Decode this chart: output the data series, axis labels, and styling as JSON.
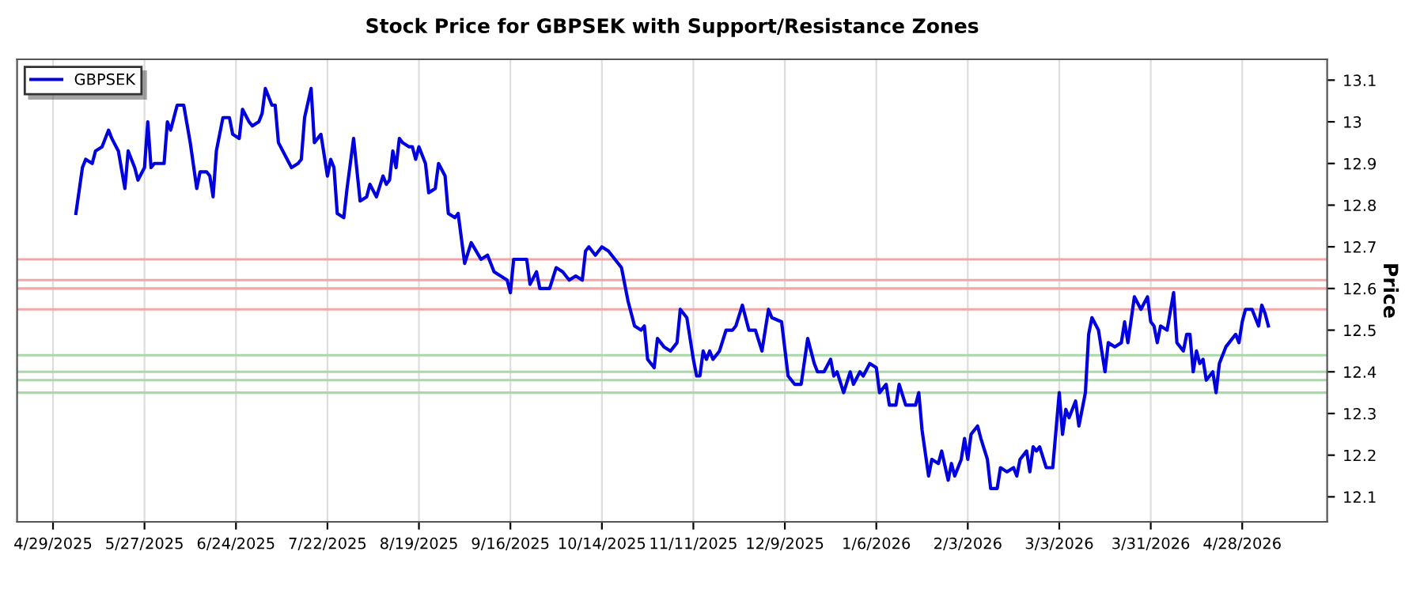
{
  "chart_data": {
    "type": "line",
    "title": "Stock Price for GBPSEK with Support/Resistance Zones",
    "ylabel": "Price",
    "series": [
      {
        "name": "GBPSEK",
        "color": "#0000e0",
        "x": [
          "2025-05-06",
          "2025-05-08",
          "2025-05-09",
          "2025-05-11",
          "2025-05-12",
          "2025-05-14",
          "2025-05-16",
          "2025-05-17",
          "2025-05-19",
          "2025-05-21",
          "2025-05-22",
          "2025-05-24",
          "2025-05-25",
          "2025-05-27",
          "2025-05-28",
          "2025-05-29",
          "2025-05-30",
          "2025-06-02",
          "2025-06-03",
          "2025-06-04",
          "2025-06-06",
          "2025-06-08",
          "2025-06-10",
          "2025-06-12",
          "2025-06-13",
          "2025-06-15",
          "2025-06-16",
          "2025-06-17",
          "2025-06-18",
          "2025-06-20",
          "2025-06-22",
          "2025-06-23",
          "2025-06-25",
          "2025-06-26",
          "2025-06-28",
          "2025-06-29",
          "2025-07-01",
          "2025-07-02",
          "2025-07-03",
          "2025-07-05",
          "2025-07-06",
          "2025-07-07",
          "2025-07-09",
          "2025-07-11",
          "2025-07-13",
          "2025-07-14",
          "2025-07-15",
          "2025-07-17",
          "2025-07-18",
          "2025-07-20",
          "2025-07-22",
          "2025-07-23",
          "2025-07-24",
          "2025-07-25",
          "2025-07-27",
          "2025-07-28",
          "2025-07-30",
          "2025-08-01",
          "2025-08-03",
          "2025-08-04",
          "2025-08-06",
          "2025-08-08",
          "2025-08-09",
          "2025-08-10",
          "2025-08-11",
          "2025-08-12",
          "2025-08-13",
          "2025-08-14",
          "2025-08-16",
          "2025-08-17",
          "2025-08-18",
          "2025-08-19",
          "2025-08-21",
          "2025-08-22",
          "2025-08-24",
          "2025-08-25",
          "2025-08-27",
          "2025-08-28",
          "2025-08-30",
          "2025-08-31",
          "2025-09-02",
          "2025-09-04",
          "2025-09-07",
          "2025-09-09",
          "2025-09-11",
          "2025-09-13",
          "2025-09-15",
          "2025-09-16",
          "2025-09-17",
          "2025-09-19",
          "2025-09-21",
          "2025-09-22",
          "2025-09-24",
          "2025-09-25",
          "2025-09-28",
          "2025-09-30",
          "2025-10-02",
          "2025-10-04",
          "2025-10-06",
          "2025-10-08",
          "2025-10-09",
          "2025-10-10",
          "2025-10-12",
          "2025-10-14",
          "2025-10-16",
          "2025-10-18",
          "2025-10-20",
          "2025-10-22",
          "2025-10-24",
          "2025-10-26",
          "2025-10-27",
          "2025-10-28",
          "2025-10-30",
          "2025-10-31",
          "2025-11-02",
          "2025-11-04",
          "2025-11-06",
          "2025-11-07",
          "2025-11-09",
          "2025-11-11",
          "2025-11-12",
          "2025-11-13",
          "2025-11-14",
          "2025-11-15",
          "2025-11-16",
          "2025-11-17",
          "2025-11-19",
          "2025-11-21",
          "2025-11-23",
          "2025-11-24",
          "2025-11-26",
          "2025-11-28",
          "2025-11-30",
          "2025-12-02",
          "2025-12-04",
          "2025-12-05",
          "2025-12-08",
          "2025-12-10",
          "2025-12-12",
          "2025-12-14",
          "2025-12-16",
          "2025-12-18",
          "2025-12-19",
          "2025-12-21",
          "2025-12-23",
          "2025-12-24",
          "2025-12-25",
          "2025-12-27",
          "2025-12-29",
          "2025-12-30",
          "2026-01-01",
          "2026-01-02",
          "2026-01-04",
          "2026-01-06",
          "2026-01-07",
          "2026-01-09",
          "2026-01-10",
          "2026-01-12",
          "2026-01-13",
          "2026-01-15",
          "2026-01-18",
          "2026-01-19",
          "2026-01-20",
          "2026-01-22",
          "2026-01-23",
          "2026-01-25",
          "2026-01-26",
          "2026-01-28",
          "2026-01-29",
          "2026-01-30",
          "2026-02-01",
          "2026-02-02",
          "2026-02-03",
          "2026-02-04",
          "2026-02-06",
          "2026-02-07",
          "2026-02-09",
          "2026-02-10",
          "2026-02-12",
          "2026-02-13",
          "2026-02-15",
          "2026-02-17",
          "2026-02-18",
          "2026-02-19",
          "2026-02-21",
          "2026-02-22",
          "2026-02-23",
          "2026-02-24",
          "2026-02-25",
          "2026-02-27",
          "2026-03-01",
          "2026-03-03",
          "2026-03-04",
          "2026-03-05",
          "2026-03-06",
          "2026-03-08",
          "2026-03-09",
          "2026-03-11",
          "2026-03-12",
          "2026-03-13",
          "2026-03-15",
          "2026-03-17",
          "2026-03-18",
          "2026-03-20",
          "2026-03-22",
          "2026-03-23",
          "2026-03-24",
          "2026-03-26",
          "2026-03-28",
          "2026-03-30",
          "2026-03-31",
          "2026-04-01",
          "2026-04-02",
          "2026-04-03",
          "2026-04-05",
          "2026-04-07",
          "2026-04-08",
          "2026-04-10",
          "2026-04-11",
          "2026-04-12",
          "2026-04-13",
          "2026-04-14",
          "2026-04-15",
          "2026-04-16",
          "2026-04-17",
          "2026-04-19",
          "2026-04-20",
          "2026-04-21",
          "2026-04-23",
          "2026-04-24",
          "2026-04-26",
          "2026-04-27",
          "2026-04-28",
          "2026-04-29",
          "2026-05-01",
          "2026-05-03",
          "2026-05-04",
          "2026-05-05",
          "2026-05-06"
        ],
        "values": [
          12.78,
          12.89,
          12.91,
          12.9,
          12.93,
          12.94,
          12.98,
          12.96,
          12.93,
          12.84,
          12.93,
          12.89,
          12.86,
          12.89,
          13.0,
          12.89,
          12.9,
          12.9,
          13.0,
          12.98,
          13.04,
          13.04,
          12.95,
          12.84,
          12.88,
          12.88,
          12.87,
          12.82,
          12.93,
          13.01,
          13.01,
          12.97,
          12.96,
          13.03,
          13.0,
          12.99,
          13.0,
          13.02,
          13.08,
          13.04,
          13.04,
          12.95,
          12.92,
          12.89,
          12.9,
          12.91,
          13.01,
          13.08,
          12.95,
          12.97,
          12.87,
          12.91,
          12.89,
          12.78,
          12.77,
          12.84,
          12.96,
          12.81,
          12.82,
          12.85,
          12.82,
          12.87,
          12.85,
          12.86,
          12.93,
          12.89,
          12.96,
          12.95,
          12.94,
          12.94,
          12.91,
          12.94,
          12.9,
          12.83,
          12.84,
          12.9,
          12.87,
          12.78,
          12.77,
          12.78,
          12.66,
          12.71,
          12.67,
          12.68,
          12.64,
          12.63,
          12.62,
          12.59,
          12.67,
          12.67,
          12.67,
          12.61,
          12.64,
          12.6,
          12.6,
          12.65,
          12.64,
          12.62,
          12.63,
          12.62,
          12.69,
          12.7,
          12.68,
          12.7,
          12.69,
          12.67,
          12.65,
          12.57,
          12.51,
          12.5,
          12.51,
          12.43,
          12.41,
          12.48,
          12.46,
          12.45,
          12.47,
          12.55,
          12.53,
          12.43,
          12.39,
          12.39,
          12.45,
          12.43,
          12.45,
          12.43,
          12.45,
          12.5,
          12.5,
          12.51,
          12.56,
          12.5,
          12.5,
          12.45,
          12.55,
          12.53,
          12.52,
          12.39,
          12.37,
          12.37,
          12.48,
          12.42,
          12.4,
          12.4,
          12.43,
          12.39,
          12.4,
          12.35,
          12.4,
          12.37,
          12.4,
          12.39,
          12.42,
          12.41,
          12.35,
          12.37,
          12.32,
          12.32,
          12.37,
          12.32,
          12.32,
          12.35,
          12.26,
          12.15,
          12.19,
          12.18,
          12.21,
          12.14,
          12.18,
          12.15,
          12.19,
          12.24,
          12.19,
          12.25,
          12.27,
          12.24,
          12.19,
          12.12,
          12.12,
          12.17,
          12.16,
          12.17,
          12.15,
          12.19,
          12.21,
          12.16,
          12.22,
          12.21,
          12.22,
          12.17,
          12.17,
          12.35,
          12.25,
          12.31,
          12.29,
          12.33,
          12.27,
          12.35,
          12.49,
          12.53,
          12.5,
          12.4,
          12.47,
          12.46,
          12.47,
          12.52,
          12.47,
          12.58,
          12.55,
          12.58,
          12.52,
          12.51,
          12.47,
          12.51,
          12.5,
          12.59,
          12.47,
          12.45,
          12.49,
          12.49,
          12.4,
          12.45,
          12.42,
          12.43,
          12.38,
          12.4,
          12.35,
          12.42,
          12.46,
          12.47,
          12.49,
          12.47,
          12.52,
          12.55,
          12.55,
          12.51,
          12.56,
          12.54,
          12.51
        ]
      }
    ],
    "ref_lines": [
      {
        "axis": "y",
        "value": 12.67,
        "color": "#f4a6a6"
      },
      {
        "axis": "y",
        "value": 12.62,
        "color": "#f4a6a6"
      },
      {
        "axis": "y",
        "value": 12.6,
        "color": "#f4a6a6"
      },
      {
        "axis": "y",
        "value": 12.55,
        "color": "#f4a6a6"
      },
      {
        "axis": "y",
        "value": 12.44,
        "color": "#a9d8a9"
      },
      {
        "axis": "y",
        "value": 12.4,
        "color": "#a9d8a9"
      },
      {
        "axis": "y",
        "value": 12.38,
        "color": "#a9d8a9"
      },
      {
        "axis": "y",
        "value": 12.35,
        "color": "#a9d8a9"
      }
    ],
    "xlim": [
      "2025-04-18",
      "2026-05-24"
    ],
    "xticks": [
      {
        "value": "2025-04-29",
        "label": "4/29/2025"
      },
      {
        "value": "2025-05-27",
        "label": "5/27/2025"
      },
      {
        "value": "2025-06-24",
        "label": "6/24/2025"
      },
      {
        "value": "2025-07-22",
        "label": "7/22/2025"
      },
      {
        "value": "2025-08-19",
        "label": "8/19/2025"
      },
      {
        "value": "2025-09-16",
        "label": "9/16/2025"
      },
      {
        "value": "2025-10-14",
        "label": "10/14/2025"
      },
      {
        "value": "2025-11-11",
        "label": "11/11/2025"
      },
      {
        "value": "2025-12-09",
        "label": "12/9/2025"
      },
      {
        "value": "2026-01-06",
        "label": "1/6/2026"
      },
      {
        "value": "2026-02-03",
        "label": "2/3/2026"
      },
      {
        "value": "2026-03-03",
        "label": "3/3/2026"
      },
      {
        "value": "2026-03-31",
        "label": "3/31/2026"
      },
      {
        "value": "2026-04-28",
        "label": "4/28/2026"
      }
    ],
    "ylim": [
      12.04,
      13.15
    ],
    "yticks": [
      12.1,
      12.2,
      12.3,
      12.4,
      12.5,
      12.6,
      12.7,
      12.8,
      12.9,
      13,
      13.1
    ],
    "grid": "x",
    "legend": "top left",
    "marker": "none",
    "line_style": "solid"
  }
}
